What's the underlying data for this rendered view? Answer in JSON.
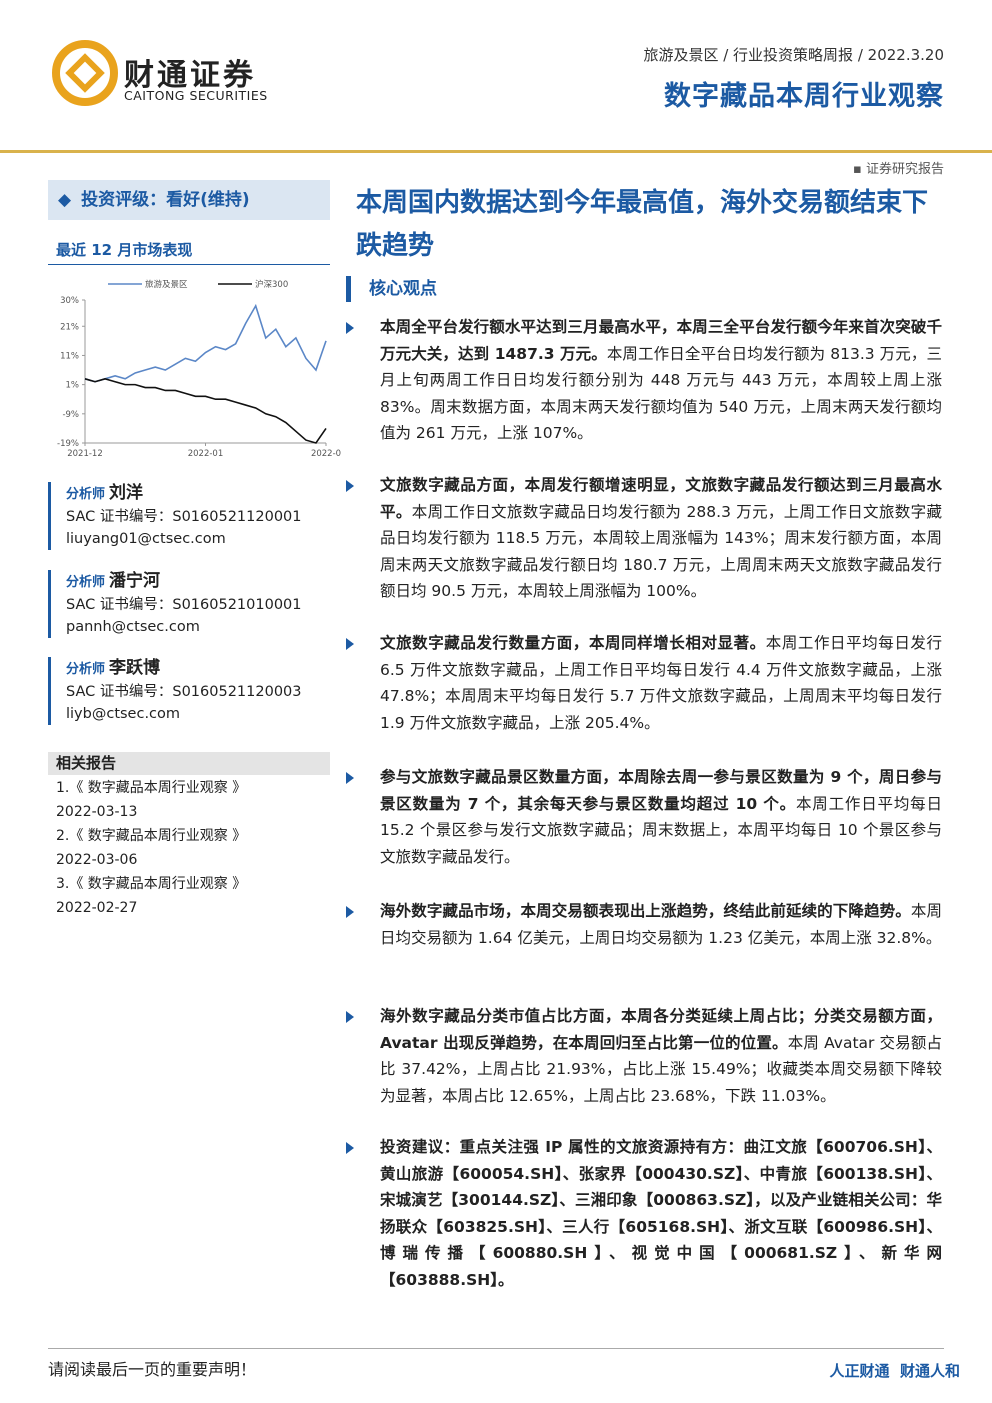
{
  "header": {
    "logo_cn": "财通证券",
    "logo_en": "CAITONG SECURITIES",
    "category": "旅游及景区 / 行业投资策略周报 / 2022.3.20",
    "title": "数字藏品本周行业观察",
    "report_type": "证券研究报告"
  },
  "sidebar": {
    "rating": "投资评级：看好(维持)",
    "market_title": "最近 12 月市场表现",
    "market_chart": {
      "type": "line",
      "x": [
        0,
        1,
        2,
        3,
        4,
        5,
        6,
        7,
        8,
        9,
        10,
        11,
        12,
        13,
        14,
        15,
        16,
        17,
        18,
        19,
        20,
        21,
        22,
        23,
        24
      ],
      "xlim": [
        0,
        24
      ],
      "xticks": [
        {
          "value": 0,
          "label": "2021-12"
        },
        {
          "value": 12,
          "label": "2022-01"
        },
        {
          "value": 24,
          "label": "2022-0"
        }
      ],
      "ylim": [
        -19,
        30
      ],
      "yticks": [
        {
          "value": 30,
          "label": "30%"
        },
        {
          "value": 21,
          "label": "21%"
        },
        {
          "value": 11,
          "label": "11%"
        },
        {
          "value": 1,
          "label": "1%"
        },
        {
          "value": -9,
          "label": "-9%"
        },
        {
          "value": -19,
          "label": "-19%"
        }
      ],
      "series": [
        {
          "name": "旅游及景区",
          "color": "#5b87c7",
          "values": [
            3,
            2,
            3,
            4,
            3,
            5,
            6,
            7,
            6,
            8,
            10,
            9,
            12,
            14,
            13,
            15,
            22,
            28,
            17,
            20,
            14,
            17,
            10,
            6,
            16
          ]
        },
        {
          "name": "沪深300",
          "color": "#111111",
          "values": [
            3,
            2,
            3,
            2,
            1,
            1,
            0,
            0,
            -1,
            -1,
            -2,
            -3,
            -3,
            -4,
            -4,
            -5,
            -6,
            -7,
            -9,
            -10,
            -12,
            -15,
            -18,
            -19,
            -14
          ]
        }
      ]
    },
    "analysts": [
      {
        "role": "分析师",
        "name": "刘洋",
        "cert": "SAC 证书编号：S0160521120001",
        "email": "liuyang01@ctsec.com"
      },
      {
        "role": "分析师",
        "name": "潘宁河",
        "cert": "SAC 证书编号：S0160521010001",
        "email": "pannh@ctsec.com"
      },
      {
        "role": "分析师",
        "name": "李跃博",
        "cert": "SAC 证书编号：S0160521120003",
        "email": "liyb@ctsec.com"
      }
    ],
    "related_title": "相关报告",
    "related": [
      {
        "title": "1.《 数字藏品本周行业观察 》",
        "date": "2022-03-13"
      },
      {
        "title": "2.《 数字藏品本周行业观察 》",
        "date": "2022-03-06"
      },
      {
        "title": "3.《 数字藏品本周行业观察 》",
        "date": "2022-02-27"
      }
    ]
  },
  "main": {
    "title": "本周国内数据达到今年最高值，海外交易额结束下跌趋势",
    "section": "核心观点",
    "paragraphs": [
      [
        {
          "text": "本周全平台发行额水平达到三月最高水平，本周三全平台发行额今年来首次突破千万元大关，达到 1487.3 万元。",
          "bold": true
        },
        {
          "text": "本周工作日全平台日均发行额为 813.3 万元，三月上旬两周工作日日均发行额分别为 448 万元与 443 万元，本周较上周上涨 83%。周末数据方面，本周末两天发行额均值为 540 万元，上周末两天发行额均值为 261 万元，上涨 107%。",
          "bold": false
        }
      ],
      [
        {
          "text": "文旅数字藏品方面，本周发行额增速明显，文旅数字藏品发行额达到三月最高水平。",
          "bold": true
        },
        {
          "text": "本周工作日文旅数字藏品日均发行额为 288.3 万元，上周工作日文旅数字藏品日均发行额为 118.5 万元，本周较上周涨幅为 143%；周末发行额方面，本周周末两天文旅数字藏品发行额日均 180.7 万元，上周周末两天文旅数字藏品发行额日均 90.5 万元，本周较上周涨幅为 100%。",
          "bold": false
        }
      ],
      [
        {
          "text": "文旅数字藏品发行数量方面，本周同样增长相对显著。",
          "bold": true
        },
        {
          "text": "本周工作日平均每日发行 6.5 万件文旅数字藏品，上周工作日平均每日发行 4.4 万件文旅数字藏品，上涨 47.8%；本周周末平均每日发行 5.7 万件文旅数字藏品，上周周末平均每日发行 1.9 万件文旅数字藏品，上涨 205.4%。",
          "bold": false
        }
      ],
      [
        {
          "text": "参与文旅数字藏品景区数量方面，本周除去周一参与景区数量为 9 个，周日参与景区数量为 7 个，其余每天参与景区数量均超过 10 个。",
          "bold": true
        },
        {
          "text": "本周工作日平均每日 15.2 个景区参与发行文旅数字藏品；周末数据上，本周平均每日 10 个景区参与文旅数字藏品发行。",
          "bold": false
        }
      ],
      [
        {
          "text": "海外数字藏品市场，本周交易额表现出上涨趋势，终结此前延续的下降趋势。",
          "bold": true
        },
        {
          "text": "本周日均交易额为 1.64 亿美元，上周日均交易额为 1.23 亿美元，本周上涨 32.8%。",
          "bold": false
        }
      ],
      [
        {
          "text": "海外数字藏品分类市值占比方面，本周各分类延续上周占比；分类交易额方面，Avatar 出现反弹趋势，在本周回归至占比第一位的位置。",
          "bold": true
        },
        {
          "text": "本周 Avatar 交易额占比 37.42%，上周占比 21.93%，占比上涨 15.49%；收藏类本周交易额下降较为显著，本周占比 12.65%，上周占比 23.68%，下跌 11.03%。",
          "bold": false
        }
      ],
      [
        {
          "text": "投资建议：重点关注强 IP 属性的文旅资源持有方：曲江文旅【600706.SH】、黄山旅游【600054.SH】、张家界【000430.SZ】、中青旅【600138.SH】、宋城演艺【300144.SZ】、三湘印象【000863.SZ】，以及产业链相关公司：华扬联众【603825.SH】、三人行【605168.SH】、浙文互联【600986.SH】、博瑞传播【600880.SH】、视觉中国【000681.SZ】、新华网【603888.SH】。",
          "bold": true
        }
      ]
    ]
  },
  "footer": {
    "notice": "请阅读最后一页的重要声明！",
    "slogan": "人正财通  财通人和"
  }
}
